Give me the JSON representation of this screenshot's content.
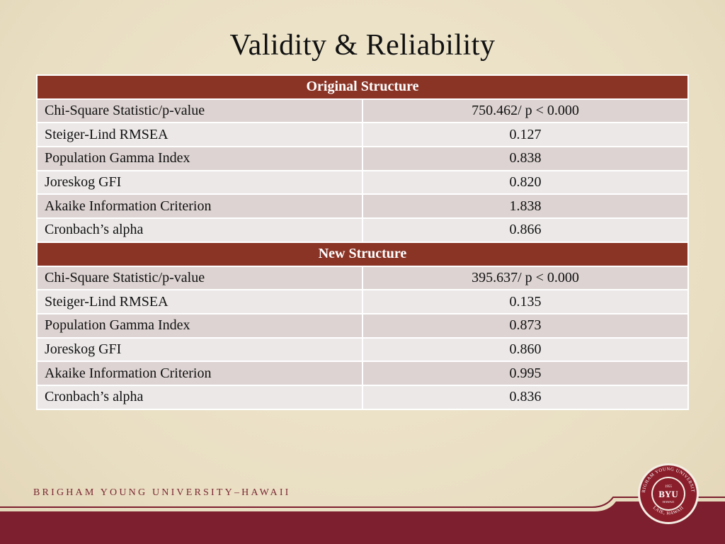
{
  "slide": {
    "title": "Validity & Reliability",
    "footer": "BRIGHAM YOUNG UNIVERSITY–HAWAII"
  },
  "seal": {
    "year": "1955",
    "initials": "BYU",
    "sub": "HAWAII",
    "ring_top": "BRIGHAM YOUNG UNIVERSITY",
    "ring_bottom": "LAIE, HAWAII"
  },
  "table": {
    "original": {
      "header": "Original Structure",
      "rows": [
        {
          "metric": "Chi-Square Statistic/p-value",
          "value": "750.462/ p < 0.000"
        },
        {
          "metric": "Steiger-Lind RMSEA",
          "value": "0.127"
        },
        {
          "metric": "Population Gamma Index",
          "value": "0.838"
        },
        {
          "metric": "Joreskog GFI",
          "value": "0.820"
        },
        {
          "metric": "Akaike Information Criterion",
          "value": "1.838"
        },
        {
          "metric": "Cronbach’s alpha",
          "value": "0.866"
        }
      ]
    },
    "new": {
      "header": "New Structure",
      "rows": [
        {
          "metric": "Chi-Square Statistic/p-value",
          "value": "395.637/ p < 0.000"
        },
        {
          "metric": "Steiger-Lind RMSEA",
          "value": "0.135"
        },
        {
          "metric": "Population Gamma Index",
          "value": "0.873"
        },
        {
          "metric": "Joreskog GFI",
          "value": "0.860"
        },
        {
          "metric": "Akaike Information Criterion",
          "value": "0.995"
        },
        {
          "metric": "Cronbach’s alpha",
          "value": "0.836"
        }
      ]
    }
  },
  "colors": {
    "header_fill": "#8a3426",
    "row_dark": "#dcd3d2",
    "row_light": "#ece8e8",
    "brand": "#7a2833"
  }
}
